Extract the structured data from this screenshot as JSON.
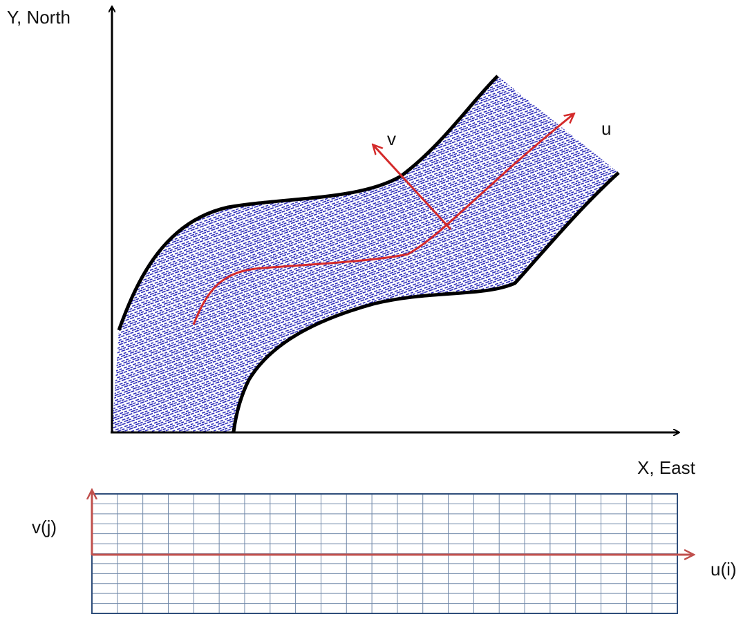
{
  "axes": {
    "y_label": "Y, North",
    "x_label": "X, East"
  },
  "curvilinear": {
    "u_label": "u",
    "v_label": "v"
  },
  "grid": {
    "v_label": "v(j)",
    "u_label": "u(i)"
  }
}
